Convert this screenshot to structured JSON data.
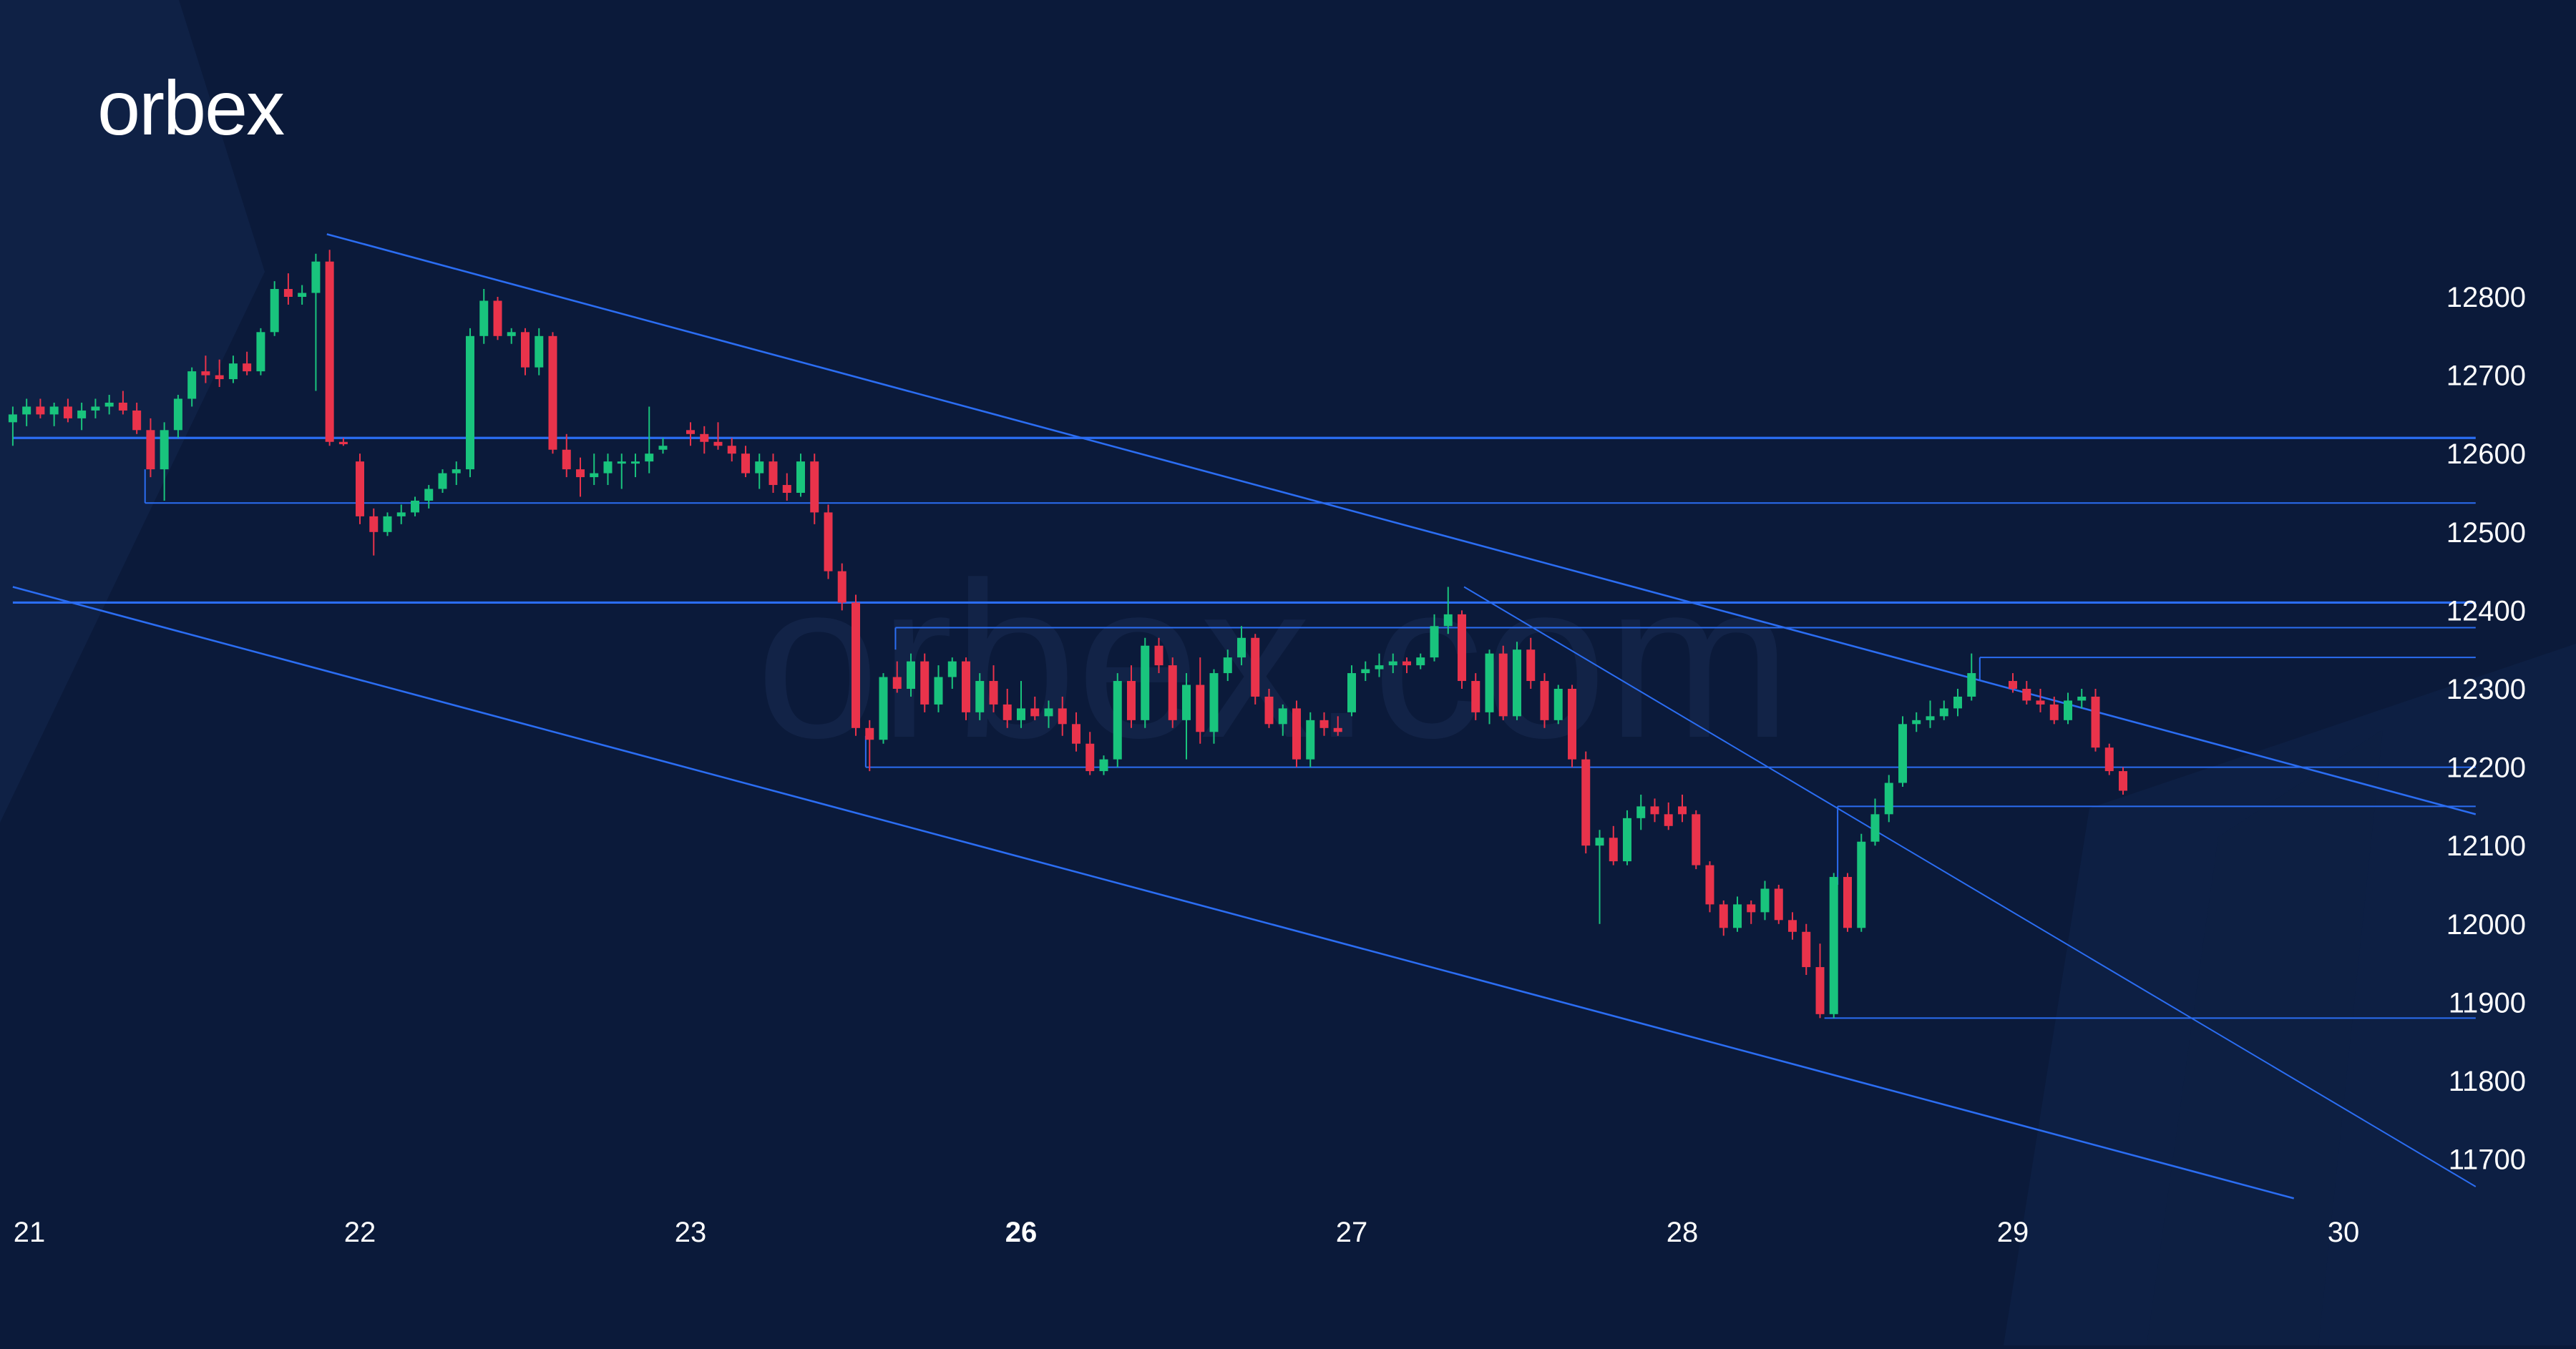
{
  "brand": {
    "logo_text": "orbex",
    "watermark_text": "orbex.com"
  },
  "colors": {
    "background": "#0b1a3a",
    "background_band": "#0f2247",
    "bull": "#19c47d",
    "bear": "#e9334b",
    "line": "#2b6df2",
    "axis_text": "#ffffff",
    "watermark": "#17294f"
  },
  "chart_data": {
    "type": "candlestick",
    "timeframe": "1h",
    "y_axis": {
      "ticks": [
        11700,
        11800,
        11900,
        12000,
        12100,
        12200,
        12300,
        12400,
        12500,
        12600,
        12700,
        12800
      ],
      "labels": [
        "11700",
        "11800",
        "11900",
        "12000",
        "12100",
        "12200",
        "12300",
        "12400",
        "12500",
        "12600",
        "12700",
        "12800"
      ],
      "range": [
        11570,
        12885
      ]
    },
    "x_axis": {
      "labels": [
        "21",
        "22",
        "23",
        "26",
        "27",
        "28",
        "29",
        "30"
      ],
      "bold_labels": [
        "26"
      ],
      "positions_in_days": [
        0,
        1,
        2,
        3,
        4,
        5,
        6,
        7
      ],
      "range_days": [
        -0.05,
        7.4
      ]
    },
    "candles": [
      [
        -0.05,
        12640,
        12660,
        12610,
        12650
      ],
      [
        -0.0083,
        12650,
        12670,
        12635,
        12660
      ],
      [
        0.0333,
        12660,
        12670,
        12645,
        12650
      ],
      [
        0.075,
        12650,
        12665,
        12635,
        12660
      ],
      [
        0.1167,
        12660,
        12670,
        12640,
        12645
      ],
      [
        0.1583,
        12645,
        12665,
        12630,
        12655
      ],
      [
        0.2,
        12655,
        12670,
        12645,
        12660
      ],
      [
        0.2417,
        12660,
        12675,
        12650,
        12665
      ],
      [
        0.2833,
        12665,
        12680,
        12650,
        12655
      ],
      [
        0.325,
        12655,
        12665,
        12625,
        12630
      ],
      [
        0.3667,
        12630,
        12645,
        12570,
        12580
      ],
      [
        0.4083,
        12580,
        12640,
        12540,
        12630
      ],
      [
        0.45,
        12630,
        12675,
        12620,
        12670
      ],
      [
        0.4917,
        12670,
        12710,
        12660,
        12705
      ],
      [
        0.5333,
        12705,
        12725,
        12690,
        12700
      ],
      [
        0.575,
        12700,
        12720,
        12685,
        12695
      ],
      [
        0.6167,
        12695,
        12725,
        12690,
        12715
      ],
      [
        0.6583,
        12715,
        12730,
        12700,
        12705
      ],
      [
        0.7,
        12705,
        12760,
        12700,
        12755
      ],
      [
        0.7417,
        12755,
        12820,
        12750,
        12810
      ],
      [
        0.7833,
        12810,
        12830,
        12790,
        12800
      ],
      [
        0.825,
        12800,
        12815,
        12790,
        12805
      ],
      [
        0.8667,
        12805,
        12855,
        12680,
        12845
      ],
      [
        0.9083,
        12845,
        12860,
        12610,
        12615
      ],
      [
        0.95,
        12615,
        12620,
        12610,
        12612
      ],
      [
        1.0,
        12590,
        12600,
        12510,
        12520
      ],
      [
        1.0417,
        12520,
        12530,
        12470,
        12500
      ],
      [
        1.0833,
        12500,
        12525,
        12495,
        12520
      ],
      [
        1.125,
        12520,
        12535,
        12510,
        12525
      ],
      [
        1.1667,
        12525,
        12545,
        12520,
        12540
      ],
      [
        1.2083,
        12540,
        12560,
        12530,
        12555
      ],
      [
        1.25,
        12555,
        12580,
        12550,
        12575
      ],
      [
        1.2917,
        12575,
        12590,
        12560,
        12580
      ],
      [
        1.3333,
        12580,
        12760,
        12570,
        12750
      ],
      [
        1.375,
        12750,
        12810,
        12740,
        12795
      ],
      [
        1.4167,
        12795,
        12800,
        12745,
        12750
      ],
      [
        1.4583,
        12750,
        12760,
        12740,
        12755
      ],
      [
        1.5,
        12755,
        12760,
        12700,
        12710
      ],
      [
        1.5417,
        12710,
        12760,
        12700,
        12750
      ],
      [
        1.5833,
        12750,
        12755,
        12600,
        12605
      ],
      [
        1.625,
        12605,
        12625,
        12570,
        12580
      ],
      [
        1.6667,
        12580,
        12595,
        12545,
        12570
      ],
      [
        1.7083,
        12570,
        12600,
        12560,
        12575
      ],
      [
        1.75,
        12575,
        12600,
        12560,
        12590
      ],
      [
        1.7917,
        12590,
        12600,
        12555,
        12590
      ],
      [
        1.8333,
        12590,
        12600,
        12570,
        12590
      ],
      [
        1.875,
        12590,
        12660,
        12575,
        12600
      ],
      [
        1.9167,
        12605,
        12620,
        12600,
        12610
      ],
      [
        2.0,
        12630,
        12640,
        12610,
        12625
      ],
      [
        2.0417,
        12625,
        12635,
        12600,
        12615
      ],
      [
        2.0833,
        12615,
        12640,
        12605,
        12610
      ],
      [
        2.125,
        12610,
        12620,
        12590,
        12600
      ],
      [
        2.1667,
        12600,
        12610,
        12570,
        12575
      ],
      [
        2.2083,
        12575,
        12600,
        12555,
        12590
      ],
      [
        2.25,
        12590,
        12600,
        12550,
        12560
      ],
      [
        2.2917,
        12560,
        12575,
        12540,
        12550
      ],
      [
        2.3333,
        12550,
        12600,
        12545,
        12590
      ],
      [
        2.375,
        12590,
        12600,
        12510,
        12525
      ],
      [
        2.4167,
        12525,
        12535,
        12440,
        12450
      ],
      [
        2.4583,
        12450,
        12460,
        12400,
        12410
      ],
      [
        2.5,
        12410,
        12420,
        12240,
        12250
      ],
      [
        2.5417,
        12250,
        12260,
        12195,
        12235
      ],
      [
        2.5833,
        12235,
        12320,
        12230,
        12315
      ],
      [
        2.625,
        12315,
        12335,
        12295,
        12300
      ],
      [
        2.6667,
        12300,
        12345,
        12290,
        12335
      ],
      [
        2.7083,
        12335,
        12345,
        12270,
        12280
      ],
      [
        2.75,
        12280,
        12330,
        12270,
        12315
      ],
      [
        2.7917,
        12315,
        12340,
        12300,
        12335
      ],
      [
        2.8333,
        12335,
        12340,
        12260,
        12270
      ],
      [
        2.875,
        12270,
        12320,
        12260,
        12310
      ],
      [
        2.9167,
        12310,
        12330,
        12270,
        12280
      ],
      [
        2.9583,
        12280,
        12300,
        12250,
        12260
      ],
      [
        3.0,
        12260,
        12310,
        12250,
        12275
      ],
      [
        3.0417,
        12275,
        12290,
        12260,
        12265
      ],
      [
        3.0833,
        12265,
        12285,
        12250,
        12275
      ],
      [
        3.125,
        12275,
        12290,
        12240,
        12255
      ],
      [
        3.1667,
        12255,
        12270,
        12220,
        12230
      ],
      [
        3.2083,
        12230,
        12245,
        12190,
        12195
      ],
      [
        3.25,
        12195,
        12215,
        12190,
        12210
      ],
      [
        3.2917,
        12210,
        12320,
        12200,
        12310
      ],
      [
        3.3333,
        12310,
        12330,
        12250,
        12260
      ],
      [
        3.375,
        12260,
        12365,
        12250,
        12355
      ],
      [
        3.4167,
        12355,
        12365,
        12320,
        12330
      ],
      [
        3.4583,
        12330,
        12340,
        12250,
        12260
      ],
      [
        3.5,
        12260,
        12320,
        12210,
        12305
      ],
      [
        3.5417,
        12305,
        12340,
        12230,
        12245
      ],
      [
        3.5833,
        12245,
        12325,
        12230,
        12320
      ],
      [
        3.625,
        12320,
        12350,
        12310,
        12340
      ],
      [
        3.6667,
        12340,
        12380,
        12330,
        12365
      ],
      [
        3.7083,
        12365,
        12370,
        12280,
        12290
      ],
      [
        3.75,
        12290,
        12300,
        12250,
        12255
      ],
      [
        3.7917,
        12255,
        12280,
        12240,
        12275
      ],
      [
        3.8333,
        12275,
        12285,
        12200,
        12210
      ],
      [
        3.875,
        12210,
        12270,
        12200,
        12260
      ],
      [
        3.9167,
        12260,
        12270,
        12240,
        12250
      ],
      [
        3.9583,
        12250,
        12265,
        12240,
        12245
      ],
      [
        4.0,
        12270,
        12330,
        12265,
        12320
      ],
      [
        4.0417,
        12320,
        12335,
        12310,
        12325
      ],
      [
        4.0833,
        12325,
        12345,
        12315,
        12330
      ],
      [
        4.125,
        12330,
        12345,
        12320,
        12335
      ],
      [
        4.1667,
        12335,
        12340,
        12320,
        12330
      ],
      [
        4.2083,
        12330,
        12345,
        12325,
        12340
      ],
      [
        4.25,
        12340,
        12395,
        12335,
        12380
      ],
      [
        4.2917,
        12380,
        12430,
        12370,
        12395
      ],
      [
        4.3333,
        12395,
        12400,
        12300,
        12310
      ],
      [
        4.375,
        12310,
        12320,
        12260,
        12270
      ],
      [
        4.4167,
        12270,
        12350,
        12255,
        12345
      ],
      [
        4.4583,
        12345,
        12355,
        12260,
        12265
      ],
      [
        4.5,
        12265,
        12360,
        12260,
        12350
      ],
      [
        4.5417,
        12350,
        12365,
        12300,
        12310
      ],
      [
        4.5833,
        12310,
        12320,
        12250,
        12260
      ],
      [
        4.625,
        12260,
        12305,
        12255,
        12300
      ],
      [
        4.6667,
        12300,
        12305,
        12200,
        12210
      ],
      [
        4.7083,
        12210,
        12220,
        12090,
        12100
      ],
      [
        4.75,
        12100,
        12120,
        12000,
        12110
      ],
      [
        4.7917,
        12110,
        12125,
        12075,
        12080
      ],
      [
        4.8333,
        12080,
        12145,
        12075,
        12135
      ],
      [
        4.875,
        12135,
        12165,
        12120,
        12150
      ],
      [
        4.9167,
        12150,
        12160,
        12130,
        12140
      ],
      [
        4.9583,
        12140,
        12155,
        12120,
        12125
      ],
      [
        5.0,
        12150,
        12165,
        12130,
        12140
      ],
      [
        5.0417,
        12140,
        12145,
        12070,
        12075
      ],
      [
        5.0833,
        12075,
        12080,
        12015,
        12025
      ],
      [
        5.125,
        12025,
        12030,
        11985,
        11995
      ],
      [
        5.1667,
        11995,
        12035,
        11990,
        12025
      ],
      [
        5.2083,
        12025,
        12030,
        12000,
        12015
      ],
      [
        5.25,
        12015,
        12055,
        12005,
        12045
      ],
      [
        5.2917,
        12045,
        12050,
        12000,
        12005
      ],
      [
        5.3333,
        12005,
        12015,
        11980,
        11990
      ],
      [
        5.375,
        11990,
        12000,
        11935,
        11945
      ],
      [
        5.4167,
        11945,
        11975,
        11880,
        11885
      ],
      [
        5.4583,
        11885,
        12065,
        11880,
        12060
      ],
      [
        5.5,
        12060,
        12065,
        11990,
        11995
      ],
      [
        5.5417,
        11995,
        12115,
        11990,
        12105
      ],
      [
        5.5833,
        12105,
        12160,
        12100,
        12140
      ],
      [
        5.625,
        12140,
        12190,
        12130,
        12180
      ],
      [
        5.6667,
        12180,
        12265,
        12175,
        12255
      ],
      [
        5.7083,
        12255,
        12270,
        12245,
        12260
      ],
      [
        5.75,
        12260,
        12285,
        12250,
        12265
      ],
      [
        5.7917,
        12265,
        12285,
        12260,
        12275
      ],
      [
        5.8333,
        12275,
        12300,
        12265,
        12290
      ],
      [
        5.875,
        12290,
        12345,
        12285,
        12320
      ],
      [
        6.0,
        12310,
        12320,
        12295,
        12300
      ],
      [
        6.0417,
        12300,
        12310,
        12280,
        12285
      ],
      [
        6.0833,
        12285,
        12300,
        12270,
        12280
      ],
      [
        6.125,
        12280,
        12290,
        12255,
        12260
      ],
      [
        6.1667,
        12260,
        12295,
        12255,
        12285
      ],
      [
        6.2083,
        12285,
        12300,
        12275,
        12290
      ],
      [
        6.25,
        12290,
        12300,
        12220,
        12225
      ],
      [
        6.2917,
        12225,
        12230,
        12190,
        12195
      ],
      [
        6.3333,
        12195,
        12200,
        12165,
        12170
      ]
    ],
    "lines": [
      {
        "kind": "horizontal",
        "price": 12620,
        "from_day": -0.05,
        "to_day": 7.4,
        "weight": "bold"
      },
      {
        "kind": "horizontal",
        "price": 12537,
        "from_day": 0.35,
        "to_day": 7.4,
        "weight": "thin"
      },
      {
        "kind": "horizontal",
        "price": 12410,
        "from_day": -0.05,
        "to_day": 7.4,
        "weight": "bold"
      },
      {
        "kind": "horizontal",
        "price": 12378,
        "from_day": 2.62,
        "to_day": 7.4,
        "weight": "thin"
      },
      {
        "kind": "horizontal",
        "price": 12340,
        "from_day": 5.9,
        "to_day": 7.4,
        "weight": "thin"
      },
      {
        "kind": "horizontal",
        "price": 12200,
        "from_day": 2.53,
        "to_day": 7.4,
        "weight": "thin"
      },
      {
        "kind": "horizontal",
        "price": 12150,
        "from_day": 5.47,
        "to_day": 7.4,
        "weight": "thin"
      },
      {
        "kind": "horizontal",
        "price": 11880,
        "from_day": 5.43,
        "to_day": 7.4,
        "weight": "thin"
      },
      {
        "kind": "vertical_tick",
        "day": 0.35,
        "from_price": 12537,
        "to_price": 12580
      },
      {
        "kind": "vertical_tick",
        "day": 2.62,
        "from_price": 12378,
        "to_price": 12350
      },
      {
        "kind": "vertical_tick",
        "day": 5.9,
        "from_price": 12340,
        "to_price": 12310
      },
      {
        "kind": "vertical_tick",
        "day": 5.47,
        "from_price": 12150,
        "to_price": 12050
      },
      {
        "kind": "vertical_tick",
        "day": 2.53,
        "from_price": 12200,
        "to_price": 12240
      },
      {
        "kind": "trend",
        "from": [
          0.9,
          12880
        ],
        "to": [
          7.4,
          12140
        ],
        "weight": "medium"
      },
      {
        "kind": "trend",
        "from": [
          -0.05,
          12430
        ],
        "to": [
          6.85,
          11650
        ],
        "weight": "medium"
      },
      {
        "kind": "trend",
        "from": [
          4.34,
          12430
        ],
        "to": [
          7.4,
          11665
        ],
        "weight": "thin"
      }
    ]
  }
}
